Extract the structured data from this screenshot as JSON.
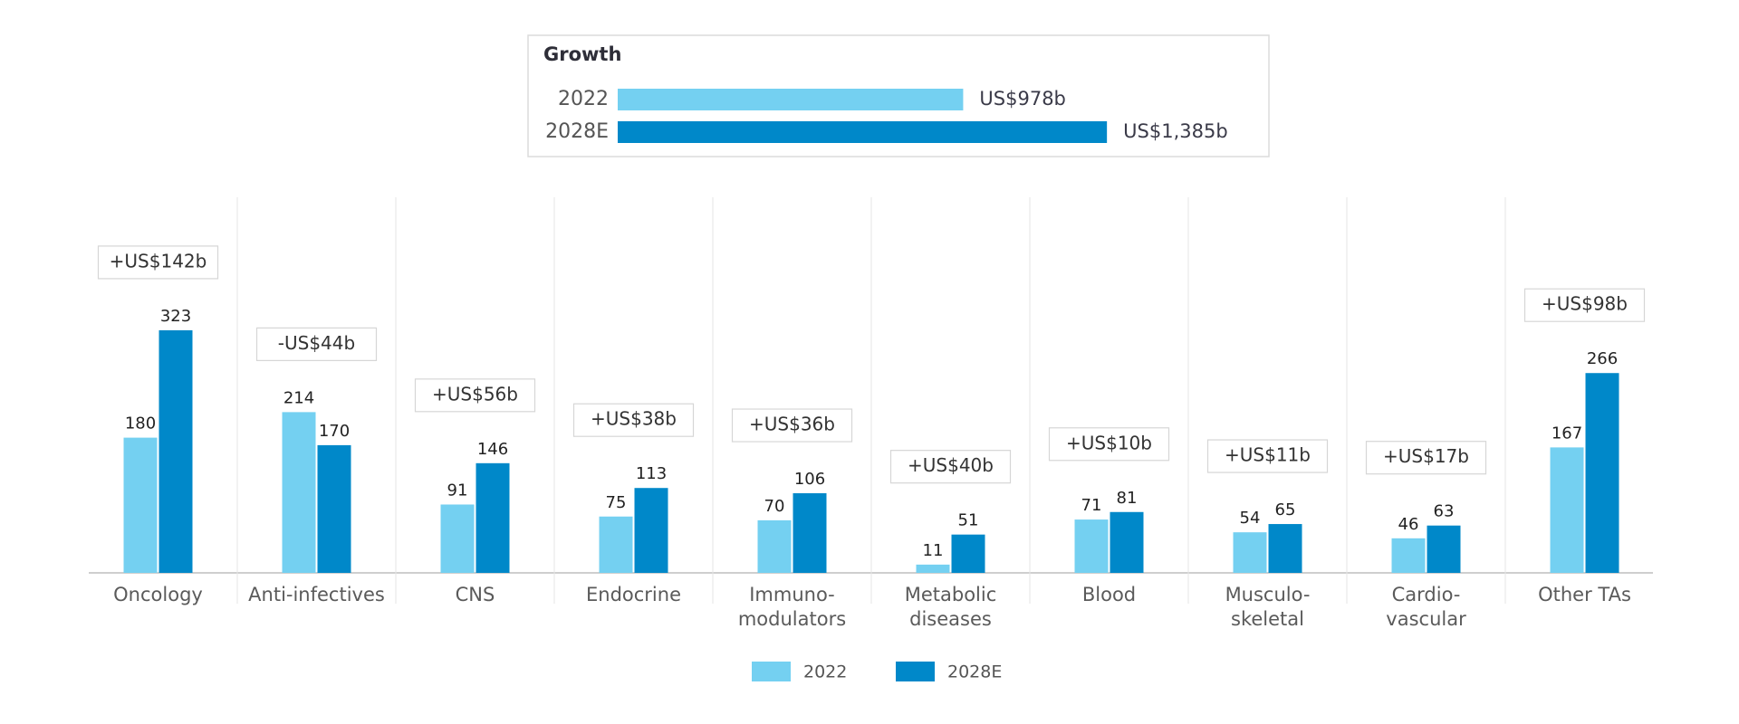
{
  "chart_data": [
    {
      "type": "bar",
      "orientation": "horizontal",
      "title": "Growth",
      "categories": [
        "2022",
        "2028E"
      ],
      "values": [
        978,
        1385
      ],
      "value_labels": [
        "US$978b",
        "US$1,385b"
      ],
      "colors": [
        "#74d0f1",
        "#0088c9"
      ]
    },
    {
      "type": "bar",
      "categories": [
        "Oncology",
        "Anti-infectives",
        "CNS",
        "Endocrine",
        "Immuno-\nmodulators",
        "Metabolic\ndiseases",
        "Blood",
        "Musculo-\nskeletal",
        "Cardio-\nvascular",
        "Other TAs"
      ],
      "series": [
        {
          "name": "2022",
          "color": "#74d0f1",
          "values": [
            180,
            214,
            91,
            75,
            70,
            11,
            71,
            54,
            46,
            167
          ]
        },
        {
          "name": "2028E",
          "color": "#0088c9",
          "values": [
            323,
            170,
            146,
            113,
            106,
            51,
            81,
            65,
            63,
            266
          ]
        }
      ],
      "annotations": [
        "+US$142b",
        "-US$44b",
        "+US$56b",
        "+US$38b",
        "+US$36b",
        "+US$40b",
        "+US$10b",
        "+US$11b",
        "+US$17b",
        "+US$98b"
      ]
    }
  ]
}
